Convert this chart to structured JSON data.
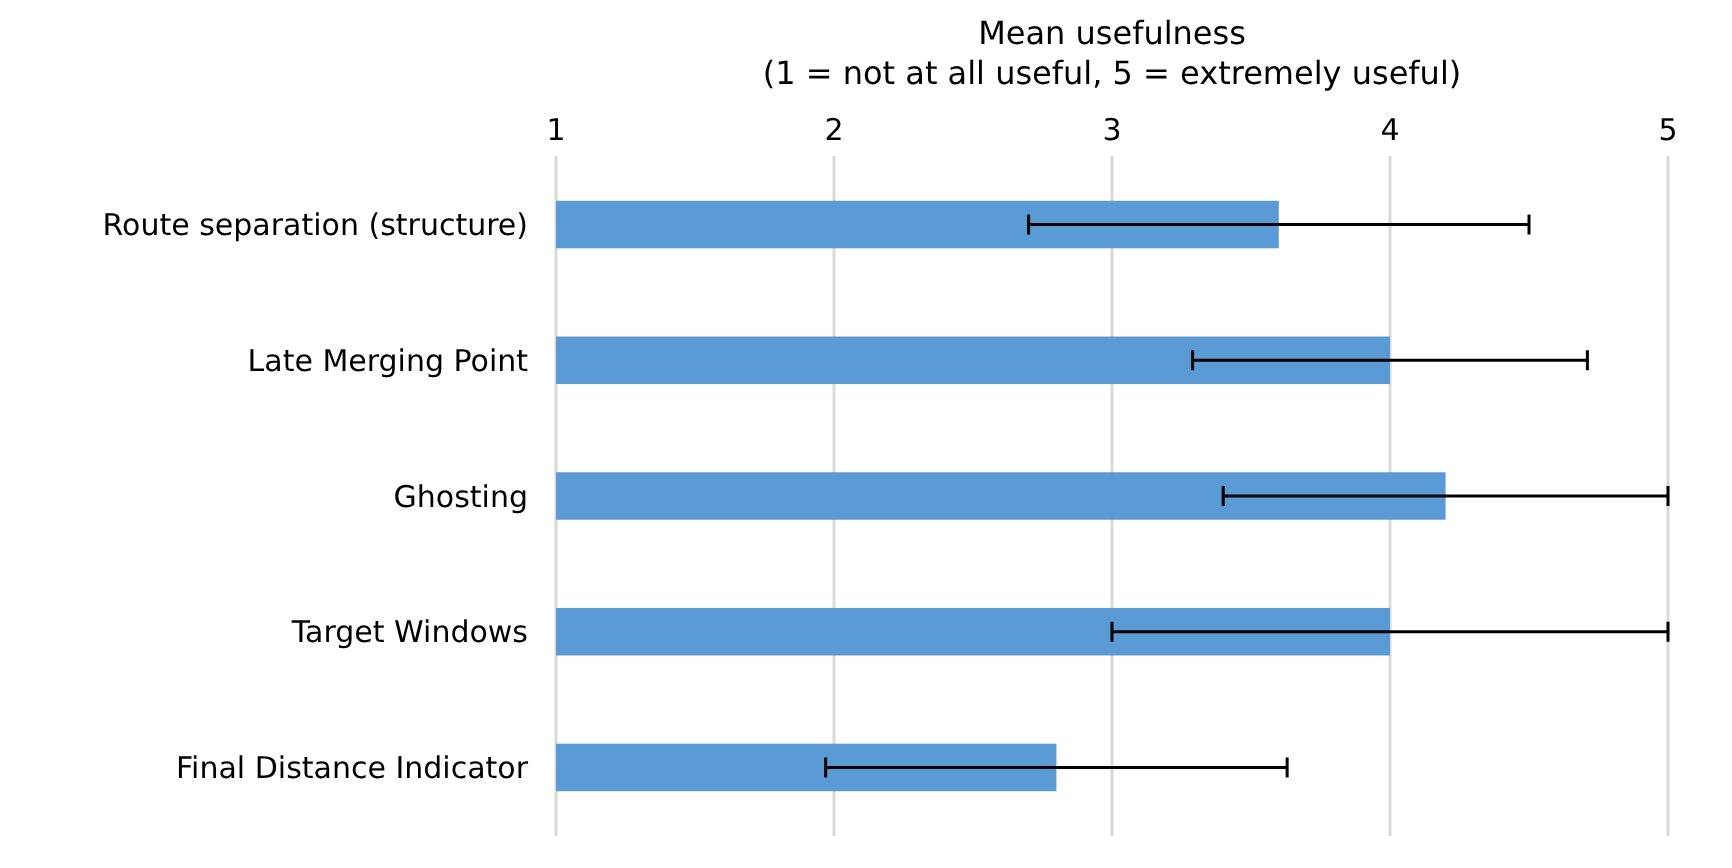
{
  "chart_data": {
    "type": "bar",
    "orientation": "horizontal",
    "xlabel": "Mean usefulness\n(1 = not at all useful, 5 = extremely useful)",
    "categories": [
      "Route separation (structure)",
      "Late Merging Point",
      "Ghosting",
      "Target Windows",
      "Final Distance Indicator"
    ],
    "values": [
      3.6,
      4.0,
      4.2,
      4.0,
      2.8
    ],
    "errors": [
      0.9,
      0.71,
      0.8,
      1.0,
      0.83
    ],
    "color": "#5b9bd5",
    "xlim": [
      1,
      5
    ],
    "xticks": [
      1,
      2,
      3,
      4,
      5
    ],
    "grid": "x"
  }
}
